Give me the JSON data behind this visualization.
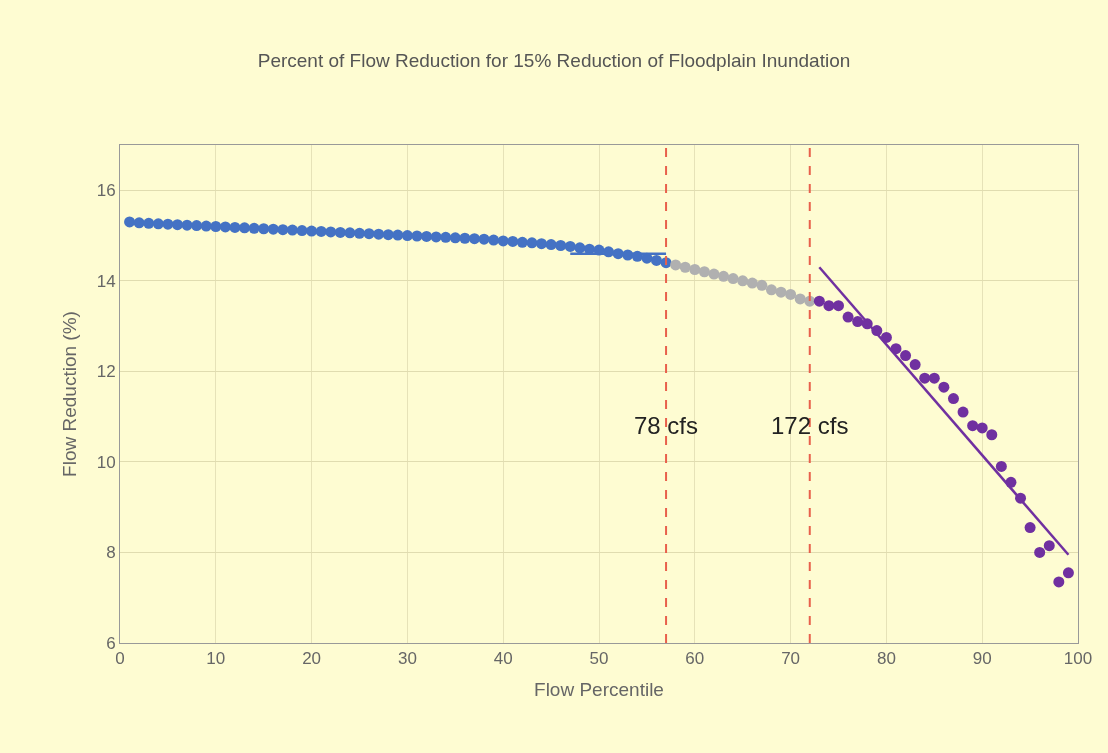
{
  "chart_data": {
    "type": "scatter",
    "title": "Percent of Flow Reduction for 15% Reduction of Floodplain Inundation",
    "xlabel": "Flow Percentile",
    "ylabel": "Flow Reduction (%)",
    "xlim": [
      0,
      100
    ],
    "xticks": [
      0,
      10,
      20,
      30,
      40,
      50,
      60,
      70,
      80,
      90,
      100
    ],
    "ylim": [
      6,
      17
    ],
    "yticks": [
      6,
      8,
      10,
      12,
      14,
      16
    ],
    "grid": true,
    "legend": false,
    "marker": "circle",
    "series": [
      {
        "color": "#4472c4",
        "x": [
          1,
          2,
          3,
          4,
          5,
          6,
          7,
          8,
          9,
          10,
          11,
          12,
          13,
          14,
          15,
          16,
          17,
          18,
          19,
          20,
          21,
          22,
          23,
          24,
          25,
          26,
          27,
          28,
          29,
          30,
          31,
          32,
          33,
          34,
          35,
          36,
          37,
          38,
          39,
          40,
          41,
          42,
          43,
          44,
          45,
          46,
          47,
          48,
          49,
          50,
          51,
          52,
          53,
          54,
          55,
          56,
          57
        ],
        "values": [
          15.3,
          15.28,
          15.27,
          15.26,
          15.25,
          15.24,
          15.23,
          15.22,
          15.21,
          15.2,
          15.19,
          15.18,
          15.17,
          15.16,
          15.15,
          15.14,
          15.13,
          15.12,
          15.11,
          15.1,
          15.09,
          15.08,
          15.07,
          15.06,
          15.05,
          15.04,
          15.03,
          15.02,
          15.01,
          15.0,
          14.99,
          14.98,
          14.97,
          14.96,
          14.95,
          14.94,
          14.93,
          14.92,
          14.9,
          14.88,
          14.87,
          14.85,
          14.84,
          14.82,
          14.8,
          14.78,
          14.76,
          14.73,
          14.7,
          14.68,
          14.64,
          14.6,
          14.57,
          14.54,
          14.5,
          14.45,
          14.4
        ]
      },
      {
        "color": "#b0b0b0",
        "x": [
          58,
          59,
          60,
          61,
          62,
          63,
          64,
          65,
          66,
          67,
          68,
          69,
          70,
          71,
          72
        ],
        "values": [
          14.35,
          14.3,
          14.25,
          14.2,
          14.15,
          14.1,
          14.05,
          14.0,
          13.95,
          13.9,
          13.8,
          13.75,
          13.7,
          13.6,
          13.55
        ]
      },
      {
        "color": "#7030a0",
        "x": [
          73,
          74,
          75,
          76,
          77,
          78,
          79,
          80,
          81,
          82,
          83,
          84,
          85,
          86,
          87,
          88,
          89,
          90,
          91,
          92,
          93,
          94,
          95,
          96,
          97,
          98,
          99
        ],
        "values": [
          13.55,
          13.45,
          13.45,
          13.2,
          13.1,
          13.05,
          12.9,
          12.75,
          12.5,
          12.35,
          12.15,
          11.85,
          11.85,
          11.65,
          11.4,
          11.1,
          10.8,
          10.75,
          10.6,
          9.9,
          9.55,
          9.2,
          8.55,
          8.0,
          8.15,
          7.35,
          7.55
        ]
      },
      {
        "type": "line",
        "marker": "none",
        "color": "#4472c4",
        "x": [
          47,
          57
        ],
        "values": [
          14.6,
          14.6
        ]
      },
      {
        "type": "line",
        "marker": "none",
        "color": "#7030a0",
        "x": [
          73,
          99
        ],
        "values": [
          14.3,
          7.95
        ]
      }
    ],
    "ref_lines": [
      {
        "axis": "x",
        "value": 57,
        "color": "#e8604c",
        "line_style": "dashed"
      },
      {
        "axis": "x",
        "value": 72,
        "color": "#e8604c",
        "line_style": "dashed"
      }
    ],
    "annotations": [
      {
        "text": "78 cfs",
        "x": 57,
        "y": 10.8
      },
      {
        "text": "172 cfs",
        "x": 72,
        "y": 10.8
      }
    ]
  }
}
